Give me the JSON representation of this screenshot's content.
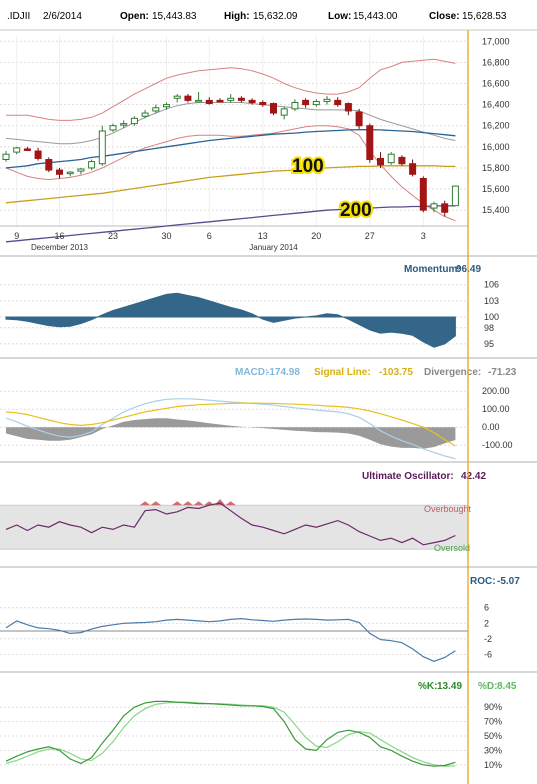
{
  "header": {
    "symbol": ".IDJII",
    "date": "2/6/2014",
    "open_label": "Open:",
    "open": "15,443.83",
    "high_label": "High:",
    "high": "15,632.09",
    "low_label": "Low:",
    "low": "15,443.00",
    "close_label": "Close:",
    "close": "15,628.53"
  },
  "colors": {
    "up": "#4caf50",
    "down": "#a31515",
    "ma50": "#2a6496",
    "ma100": "#c8a020",
    "ma200": "#5a4a8a",
    "bb_upper": "#d98080",
    "bb_mid": "#999999",
    "momentum": "#336688",
    "macd": "#a8d0e8",
    "signal": "#e8c020",
    "divergence": "#9a9a9a",
    "uo": "#6a2a6a",
    "uo_ob": "#c04040",
    "uo_os": "#40a040",
    "roc": "#4a7aa8",
    "k": "#3a9a3a",
    "d": "#90d890",
    "cursor": "#e8a000"
  },
  "chart_data": [
    {
      "type": "candlestick",
      "id": "price",
      "title": "",
      "ylim": [
        15250,
        17050
      ],
      "y_ticks": [
        "17,000",
        "16,800",
        "16,600",
        "16,400",
        "16,200",
        "16,000",
        "15,800",
        "15,600",
        "15,400"
      ],
      "y_tick_values": [
        17000,
        16800,
        16600,
        16400,
        16200,
        16000,
        15800,
        15600,
        15400
      ],
      "x_day_labels": [
        "9",
        "16",
        "23",
        "30",
        "6",
        "13",
        "20",
        "27",
        "3"
      ],
      "x_day_indices": [
        1,
        5,
        10,
        15,
        19,
        24,
        29,
        34,
        39
      ],
      "x_month_labels": [
        "December 2013",
        "January 2014"
      ],
      "x_month_indices": [
        5,
        25
      ],
      "ma_labels": [
        "100",
        "200"
      ],
      "candles": [
        {
          "o": 15880,
          "h": 15960,
          "l": 15860,
          "c": 15930
        },
        {
          "o": 15950,
          "h": 16000,
          "l": 15930,
          "c": 15990
        },
        {
          "o": 15980,
          "h": 16000,
          "l": 15960,
          "c": 15975
        },
        {
          "o": 15960,
          "h": 15990,
          "l": 15870,
          "c": 15890
        },
        {
          "o": 15880,
          "h": 15900,
          "l": 15760,
          "c": 15780
        },
        {
          "o": 15780,
          "h": 15800,
          "l": 15700,
          "c": 15740
        },
        {
          "o": 15750,
          "h": 15770,
          "l": 15720,
          "c": 15760
        },
        {
          "o": 15770,
          "h": 15800,
          "l": 15740,
          "c": 15790
        },
        {
          "o": 15800,
          "h": 15880,
          "l": 15780,
          "c": 15860
        },
        {
          "o": 15840,
          "h": 16200,
          "l": 15820,
          "c": 16150
        },
        {
          "o": 16160,
          "h": 16220,
          "l": 16140,
          "c": 16200
        },
        {
          "o": 16210,
          "h": 16250,
          "l": 16180,
          "c": 16220
        },
        {
          "o": 16220,
          "h": 16290,
          "l": 16200,
          "c": 16270
        },
        {
          "o": 16290,
          "h": 16350,
          "l": 16270,
          "c": 16320
        },
        {
          "o": 16340,
          "h": 16400,
          "l": 16320,
          "c": 16370
        },
        {
          "o": 16380,
          "h": 16420,
          "l": 16350,
          "c": 16400
        },
        {
          "o": 16460,
          "h": 16500,
          "l": 16420,
          "c": 16480
        },
        {
          "o": 16480,
          "h": 16500,
          "l": 16420,
          "c": 16440
        },
        {
          "o": 16440,
          "h": 16520,
          "l": 16420,
          "c": 16440
        },
        {
          "o": 16440,
          "h": 16470,
          "l": 16400,
          "c": 16410
        },
        {
          "o": 16440,
          "h": 16460,
          "l": 16420,
          "c": 16430
        },
        {
          "o": 16440,
          "h": 16500,
          "l": 16420,
          "c": 16460
        },
        {
          "o": 16460,
          "h": 16480,
          "l": 16420,
          "c": 16440
        },
        {
          "o": 16440,
          "h": 16460,
          "l": 16400,
          "c": 16420
        },
        {
          "o": 16420,
          "h": 16440,
          "l": 16380,
          "c": 16400
        },
        {
          "o": 16410,
          "h": 16420,
          "l": 16300,
          "c": 16320
        },
        {
          "o": 16300,
          "h": 16380,
          "l": 16260,
          "c": 16360
        },
        {
          "o": 16360,
          "h": 16450,
          "l": 16340,
          "c": 16420
        },
        {
          "o": 16440,
          "h": 16460,
          "l": 16370,
          "c": 16400
        },
        {
          "o": 16400,
          "h": 16450,
          "l": 16380,
          "c": 16430
        },
        {
          "o": 16430,
          "h": 16480,
          "l": 16400,
          "c": 16450
        },
        {
          "o": 16440,
          "h": 16470,
          "l": 16380,
          "c": 16400
        },
        {
          "o": 16410,
          "h": 16420,
          "l": 16300,
          "c": 16340
        },
        {
          "o": 16330,
          "h": 16360,
          "l": 16170,
          "c": 16200
        },
        {
          "o": 16200,
          "h": 16220,
          "l": 15850,
          "c": 15880
        },
        {
          "o": 15890,
          "h": 15950,
          "l": 15800,
          "c": 15830
        },
        {
          "o": 15850,
          "h": 15950,
          "l": 15830,
          "c": 15930
        },
        {
          "o": 15900,
          "h": 15920,
          "l": 15820,
          "c": 15840
        },
        {
          "o": 15840,
          "h": 15880,
          "l": 15720,
          "c": 15740
        },
        {
          "o": 15700,
          "h": 15720,
          "l": 15380,
          "c": 15400
        },
        {
          "o": 15420,
          "h": 15480,
          "l": 15380,
          "c": 15460
        },
        {
          "o": 15460,
          "h": 15490,
          "l": 15340,
          "c": 15380
        },
        {
          "o": 15443,
          "h": 15632,
          "l": 15443,
          "c": 15628
        }
      ],
      "ma50": [
        15800,
        15810,
        15820,
        15840,
        15850,
        15860,
        15870,
        15880,
        15900,
        15910,
        15925,
        15940,
        15955,
        15970,
        15985,
        16000,
        16015,
        16030,
        16045,
        16060,
        16070,
        16080,
        16090,
        16100,
        16110,
        16120,
        16125,
        16130,
        16140,
        16145,
        16150,
        16155,
        16160,
        16162,
        16162,
        16160,
        16155,
        16150,
        16145,
        16135,
        16125,
        16115,
        16105
      ],
      "ma100": [
        15470,
        15480,
        15490,
        15500,
        15510,
        15520,
        15530,
        15540,
        15550,
        15560,
        15575,
        15590,
        15605,
        15620,
        15635,
        15650,
        15665,
        15680,
        15695,
        15710,
        15720,
        15730,
        15740,
        15750,
        15760,
        15770,
        15775,
        15780,
        15790,
        15795,
        15800,
        15805,
        15810,
        15815,
        15815,
        15820,
        15820,
        15820,
        15820,
        15820,
        15820,
        15815,
        15815
      ],
      "ma200": [
        15100,
        15110,
        15120,
        15130,
        15140,
        15150,
        15160,
        15170,
        15180,
        15190,
        15200,
        15210,
        15220,
        15230,
        15240,
        15250,
        15260,
        15270,
        15280,
        15290,
        15300,
        15310,
        15320,
        15330,
        15340,
        15350,
        15360,
        15370,
        15380,
        15390,
        15400,
        15405,
        15410,
        15415,
        15420,
        15425,
        15430,
        15430,
        15435,
        15435,
        15440,
        15440,
        15440
      ],
      "bb_upper": [
        16300,
        16300,
        16300,
        16280,
        16260,
        16250,
        16250,
        16260,
        16280,
        16320,
        16380,
        16440,
        16500,
        16550,
        16600,
        16650,
        16680,
        16700,
        16720,
        16730,
        16740,
        16750,
        16740,
        16720,
        16690,
        16650,
        16600,
        16560,
        16530,
        16510,
        16500,
        16500,
        16520,
        16560,
        16650,
        16730,
        16760,
        16800,
        16810,
        16820,
        16830,
        16810,
        16790
      ],
      "bb_mid": [
        16080,
        16070,
        16060,
        16050,
        16040,
        16030,
        16030,
        16040,
        16060,
        16090,
        16130,
        16180,
        16230,
        16280,
        16320,
        16360,
        16390,
        16410,
        16420,
        16420,
        16420,
        16420,
        16420,
        16410,
        16400,
        16390,
        16380,
        16370,
        16360,
        16350,
        16350,
        16350,
        16350,
        16340,
        16300,
        16260,
        16230,
        16200,
        16170,
        16140,
        16110,
        16080,
        16060
      ],
      "bb_lower": [
        15800,
        15760,
        15720,
        15700,
        15690,
        15700,
        15710,
        15730,
        15760,
        15800,
        15850,
        15900,
        15950,
        15990,
        16020,
        16050,
        16080,
        16100,
        16110,
        16110,
        16110,
        16100,
        16100,
        16110,
        16120,
        16130,
        16150,
        16170,
        16190,
        16200,
        16200,
        16190,
        16170,
        16110,
        15960,
        15830,
        15720,
        15620,
        15540,
        15460,
        15400,
        15340,
        15300
      ]
    },
    {
      "type": "area",
      "id": "momentum",
      "title": "Momentum:",
      "value_label": "96.49",
      "ylim": [
        93.5,
        106.5
      ],
      "baseline": 100,
      "y_ticks": [
        "106",
        "103",
        "100",
        "98",
        "95"
      ],
      "y_tick_values": [
        106,
        103,
        100,
        98,
        95
      ],
      "values": [
        99.6,
        99.5,
        99.2,
        98.8,
        98.4,
        98.2,
        98.3,
        98.8,
        99.5,
        100.4,
        101.2,
        101.8,
        102.4,
        103.0,
        103.6,
        104.2,
        104.4,
        104.0,
        103.6,
        103.0,
        102.4,
        101.8,
        101.3,
        100.6,
        99.6,
        99.0,
        99.4,
        99.8,
        100.0,
        100.2,
        100.6,
        100.4,
        99.6,
        98.6,
        97.6,
        97.0,
        97.2,
        97.0,
        96.6,
        95.4,
        94.4,
        95.0,
        96.49
      ]
    },
    {
      "type": "line",
      "id": "macd",
      "title": "MACD:",
      "macd_label": "-174.98",
      "signal_title": "Signal Line:",
      "signal_label": "-103.75",
      "divergence_title": "Divergence:",
      "divergence_label": "-71.23",
      "ylim": [
        -160,
        240
      ],
      "y_ticks": [
        "200.00",
        "100.00",
        "0.00",
        "-100.00"
      ],
      "y_tick_values": [
        200,
        100,
        0,
        -100
      ],
      "macd": [
        50,
        30,
        5,
        -15,
        -35,
        -50,
        -55,
        -45,
        -25,
        15,
        50,
        85,
        110,
        130,
        145,
        155,
        158,
        158,
        155,
        150,
        145,
        140,
        136,
        132,
        128,
        122,
        115,
        108,
        102,
        95,
        90,
        85,
        75,
        55,
        20,
        -20,
        -50,
        -75,
        -95,
        -120,
        -140,
        -160,
        -175
      ],
      "signal": [
        85,
        80,
        70,
        55,
        40,
        25,
        15,
        10,
        15,
        25,
        40,
        55,
        70,
        85,
        95,
        105,
        115,
        120,
        125,
        128,
        130,
        132,
        134,
        134,
        133,
        132,
        130,
        128,
        125,
        122,
        118,
        115,
        110,
        102,
        90,
        75,
        58,
        40,
        20,
        0,
        -30,
        -70,
        -104
      ],
      "divergence": [
        -35,
        -50,
        -65,
        -70,
        -75,
        -75,
        -70,
        -55,
        -40,
        -10,
        10,
        30,
        40,
        45,
        50,
        50,
        43,
        38,
        30,
        22,
        15,
        8,
        2,
        -2,
        -5,
        -10,
        -15,
        -20,
        -23,
        -27,
        -28,
        -30,
        -35,
        -47,
        -70,
        -95,
        -108,
        -115,
        -115,
        -120,
        -110,
        -90,
        -71
      ]
    },
    {
      "type": "line",
      "id": "ultimate",
      "title": "Ultimate Oscillator:",
      "value_label": "42.42",
      "ylim": [
        22,
        82
      ],
      "overbought": 70,
      "oversold": 30,
      "overbought_label": "Overbought",
      "oversold_label": "Oversold",
      "values": [
        48,
        52,
        47,
        52,
        50,
        55,
        52,
        50,
        45,
        50,
        48,
        52,
        50,
        65,
        66,
        62,
        64,
        68,
        67,
        70,
        72,
        65,
        58,
        52,
        50,
        47,
        44,
        48,
        52,
        50,
        53,
        56,
        52,
        46,
        42,
        38,
        40,
        36,
        40,
        34,
        36,
        38,
        42.42
      ]
    },
    {
      "type": "line",
      "id": "roc",
      "title": "ROC:",
      "value_label": "-5.07",
      "ylim": [
        -9,
        8.5
      ],
      "y_ticks": [
        "6",
        "2",
        "-2",
        "-6"
      ],
      "y_tick_values": [
        6,
        2,
        -2,
        -6
      ],
      "values": [
        0.8,
        2.6,
        1.6,
        0.8,
        0.6,
        0.2,
        -0.6,
        -0.4,
        0.5,
        1.2,
        1.6,
        2.0,
        2.1,
        2.2,
        2.4,
        2.8,
        3.0,
        2.8,
        2.6,
        2.4,
        2.6,
        3.0,
        3.2,
        2.9,
        2.7,
        2.5,
        2.8,
        3.0,
        3.1,
        3.0,
        2.8,
        2.9,
        3.0,
        2.2,
        -0.6,
        -2.2,
        -2.5,
        -3.0,
        -4.6,
        -6.6,
        -7.8,
        -6.8,
        -5.07
      ]
    },
    {
      "type": "line",
      "id": "stochastic",
      "title_k": "%K:",
      "k_label": "13.49",
      "title_d": "%D:",
      "d_label": "8.45",
      "ylim": [
        0,
        100
      ],
      "y_ticks": [
        "90%",
        "70%",
        "50%",
        "30%",
        "10%"
      ],
      "y_tick_values": [
        90,
        70,
        50,
        30,
        10
      ],
      "k": [
        15,
        22,
        28,
        32,
        35,
        30,
        18,
        12,
        20,
        40,
        58,
        78,
        90,
        96,
        98,
        98,
        97,
        96,
        95,
        95,
        94,
        93,
        92,
        92,
        91,
        88,
        70,
        45,
        32,
        30,
        45,
        55,
        58,
        55,
        48,
        35,
        30,
        22,
        15,
        10,
        8,
        9,
        13.49
      ],
      "d": [
        12,
        16,
        22,
        28,
        32,
        32,
        26,
        18,
        16,
        26,
        42,
        62,
        78,
        88,
        94,
        96,
        97,
        97,
        96,
        95,
        95,
        94,
        93,
        92,
        92,
        90,
        83,
        66,
        48,
        36,
        34,
        42,
        52,
        56,
        54,
        45,
        36,
        28,
        20,
        14,
        10,
        8,
        8.45
      ]
    }
  ]
}
